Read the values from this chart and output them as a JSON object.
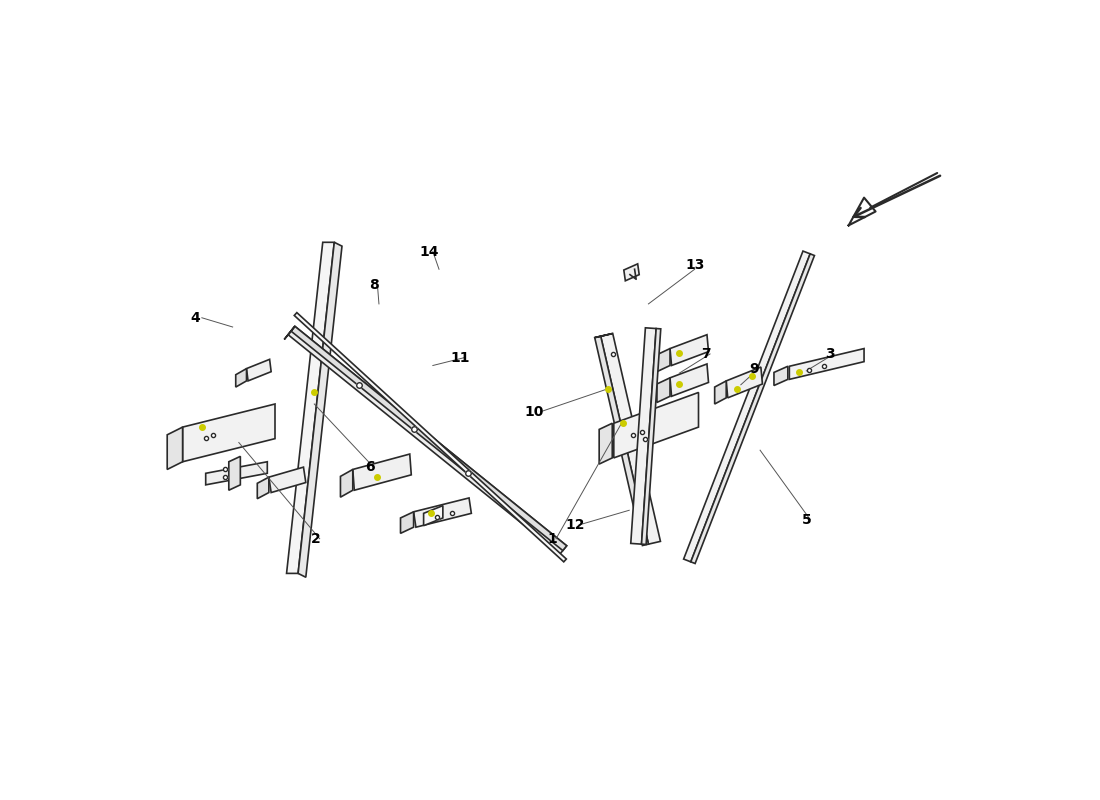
{
  "background_color": "#ffffff",
  "line_color": "#2a2a2a",
  "line_width": 1.2,
  "dot_color": "#cccc00",
  "label_color": "#000000",
  "label_fontsize": 10,
  "label_fontweight": "bold"
}
